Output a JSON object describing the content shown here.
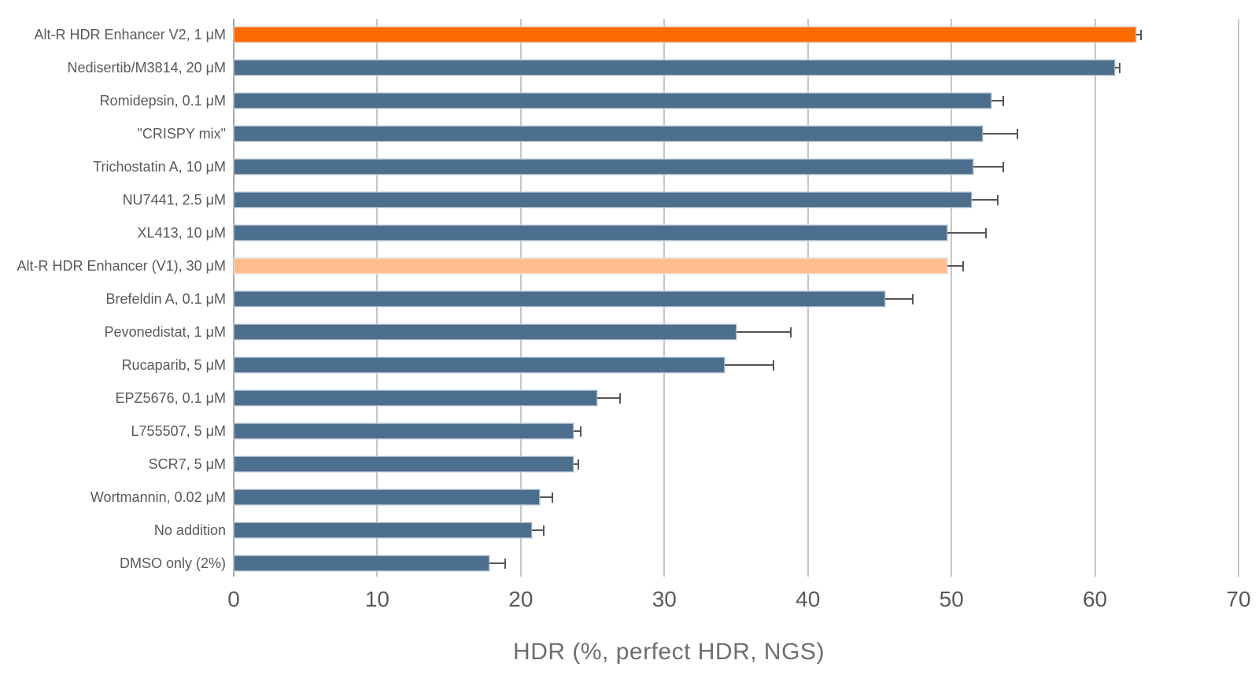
{
  "chart_data": {
    "type": "bar",
    "orientation": "horizontal",
    "title": "",
    "xlabel": "HDR (%, perfect HDR, NGS)",
    "xlim": [
      0,
      70
    ],
    "xticks": [
      0,
      10,
      20,
      30,
      40,
      50,
      60,
      70
    ],
    "grid": "vertical",
    "legend": "none",
    "bars": [
      {
        "label": "Alt-R HDR Enhancer V2, 1 μM",
        "value": 62.9,
        "error": 0.3,
        "color": "highlight"
      },
      {
        "label": "Nedisertib/M3814, 20 μM",
        "value": 61.4,
        "error": 0.3,
        "color": "default"
      },
      {
        "label": "Romidepsin, 0.1 μM",
        "value": 52.8,
        "error": 0.8,
        "color": "default"
      },
      {
        "label": "\"CRISPY mix\"",
        "value": 52.2,
        "error": 2.4,
        "color": "default"
      },
      {
        "label": "Trichostatin A, 10 μM",
        "value": 51.5,
        "error": 2.1,
        "color": "default"
      },
      {
        "label": "NU7441, 2.5 μM",
        "value": 51.4,
        "error": 1.8,
        "color": "default"
      },
      {
        "label": "XL413, 10 μM",
        "value": 49.7,
        "error": 2.7,
        "color": "default"
      },
      {
        "label": "Alt-R HDR Enhancer (V1), 30 μM",
        "value": 49.7,
        "error": 1.1,
        "color": "highlight-light"
      },
      {
        "label": "Brefeldin A, 0.1 μM",
        "value": 45.4,
        "error": 1.9,
        "color": "default"
      },
      {
        "label": "Pevonedistat, 1 μM",
        "value": 35.0,
        "error": 3.8,
        "color": "default"
      },
      {
        "label": "Rucaparib, 5 μM",
        "value": 34.2,
        "error": 3.4,
        "color": "default"
      },
      {
        "label": "EPZ5676, 0.1 μM",
        "value": 25.3,
        "error": 1.6,
        "color": "default"
      },
      {
        "label": "L755507, 5 μM",
        "value": 23.7,
        "error": 0.5,
        "color": "default"
      },
      {
        "label": "SCR7, 5 μM",
        "value": 23.7,
        "error": 0.3,
        "color": "default"
      },
      {
        "label": "Wortmannin, 0.02 μM",
        "value": 21.3,
        "error": 0.9,
        "color": "default"
      },
      {
        "label": "No addition",
        "value": 20.8,
        "error": 0.8,
        "color": "default"
      },
      {
        "label": "DMSO only (2%)",
        "value": 17.8,
        "error": 1.1,
        "color": "default"
      }
    ],
    "colors": {
      "highlight": "#fc6a03",
      "highlight-light": "#fdbd8e",
      "default": "#4d6f8e",
      "gridline": "#c6c6c6",
      "axis_line": "#a6a6a6",
      "error_bar": "#555555",
      "tick_text": "#58595b",
      "label_text": "#58595b",
      "xlabel_text": "#6d6e71",
      "background": "#ffffff"
    }
  }
}
